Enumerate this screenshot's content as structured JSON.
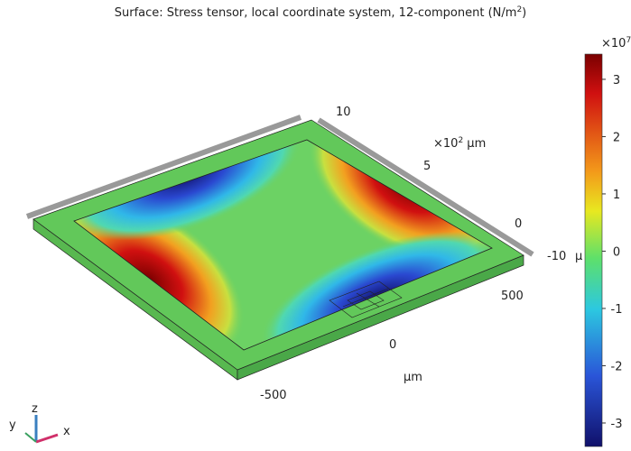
{
  "title": {
    "text": "Surface: Stress tensor, local coordinate system, 12-component (N/m",
    "sup": "2",
    "end": ")"
  },
  "colorbar": {
    "multiplier": "×10",
    "exponent": "7",
    "lim": [
      -3.41,
      3.44
    ],
    "ticks": [
      3,
      2,
      1,
      0,
      -1,
      -2,
      -3
    ]
  },
  "axes": {
    "y_ticks": [
      "10",
      "5",
      "0"
    ],
    "y_unit": {
      "text": "×10",
      "sup": "2",
      "end": " μm"
    },
    "x_ticks": [
      "500",
      "0",
      "-500"
    ],
    "x_unit": "μm",
    "clipped_ticks": [
      "-10",
      "μ"
    ]
  },
  "triad": {
    "z": "z",
    "y": "y",
    "x": "x"
  }
}
